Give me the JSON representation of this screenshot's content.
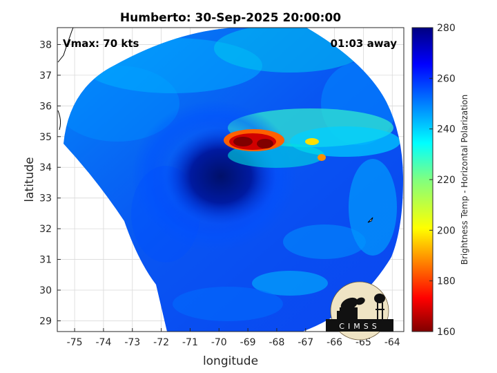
{
  "title": "Humberto: 30-Sep-2025 20:00:00",
  "annotations": {
    "vmax": "Vmax: 70 kts",
    "time_offset": "01:03 away"
  },
  "axes": {
    "xlabel": "longitude",
    "ylabel": "latitude",
    "xlim": [
      -75.6,
      -63.6
    ],
    "ylim": [
      28.65,
      38.55
    ],
    "xticks": [
      "-75",
      "-74",
      "-73",
      "-72",
      "-71",
      "-70",
      "-69",
      "-68",
      "-67",
      "-66",
      "-65",
      "-64"
    ],
    "yticks": [
      "29",
      "30",
      "31",
      "32",
      "33",
      "34",
      "35",
      "36",
      "37",
      "38"
    ],
    "grid": true
  },
  "colorbar": {
    "label": "Brightness Temp - Horizontal Polarization",
    "range": [
      160,
      280
    ],
    "ticks": [
      "160",
      "180",
      "200",
      "220",
      "240",
      "260",
      "280"
    ],
    "colormap": "jet"
  },
  "logo": {
    "text": "CIMSS"
  },
  "chart_data": {
    "type": "heatmap",
    "storm_center": {
      "lon": -70.1,
      "lat": 33.5
    },
    "warm_core_temp_min": 160
  },
  "colors": {
    "bg": "#ffffff",
    "grid": "#d9d9d9",
    "axis": "#262626"
  }
}
